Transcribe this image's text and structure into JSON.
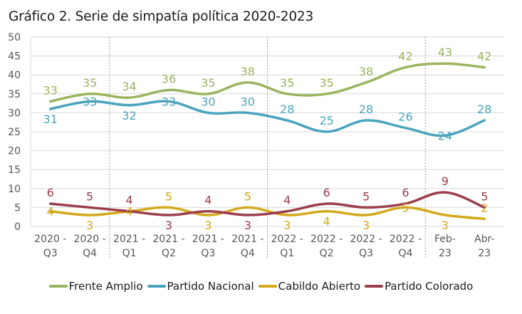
{
  "chart_data": {
    "type": "line",
    "title": "Gráfico 2. Serie de simpatía política 2020-2023",
    "xlabel": "",
    "ylabel": "",
    "ylim": [
      0,
      50
    ],
    "yticks": [
      0,
      5,
      10,
      15,
      20,
      25,
      30,
      35,
      40,
      45,
      50
    ],
    "grid": true,
    "legend_position": "bottom",
    "categories": [
      [
        "2020 -",
        "Q3"
      ],
      [
        "2020 -",
        "Q4"
      ],
      [
        "2021 -",
        "Q1"
      ],
      [
        "2021 -",
        "Q2"
      ],
      [
        "2021 -",
        "Q3"
      ],
      [
        "2021 -",
        "Q4"
      ],
      [
        "2022 -",
        "Q1"
      ],
      [
        "2022 -",
        "Q2"
      ],
      [
        "2022 -",
        "Q3"
      ],
      [
        "2022 -",
        "Q4"
      ],
      [
        "Feb-",
        "23"
      ],
      [
        "Abr-",
        "23"
      ]
    ],
    "year_separators_after_index": [
      1,
      5,
      9
    ],
    "series": [
      {
        "name": "Frente Amplio",
        "color": "#9bb35f",
        "values": [
          33,
          35,
          34,
          36,
          35,
          38,
          35,
          35,
          38,
          42,
          43,
          42
        ],
        "label_pos": [
          "above",
          "above",
          "above",
          "above",
          "above",
          "above",
          "above",
          "above",
          "above",
          "above",
          "above",
          "above"
        ]
      },
      {
        "name": "Partido Nacional",
        "color": "#4ba3bd",
        "values": [
          31,
          33,
          32,
          33,
          30,
          30,
          28,
          25,
          28,
          26,
          24,
          28
        ],
        "label_pos": [
          "below",
          "on",
          "below",
          "on",
          "above",
          "above",
          "above",
          "above",
          "above",
          "above",
          "on",
          "above"
        ]
      },
      {
        "name": "Cabildo Abierto",
        "color": "#d3a91c",
        "values": [
          4,
          3,
          4,
          5,
          3,
          5,
          3,
          4,
          3,
          5,
          3,
          2
        ],
        "label_pos": [
          "on",
          "below",
          "on",
          "above",
          "below",
          "above",
          "below",
          "below",
          "below",
          "on",
          "below",
          "above"
        ]
      },
      {
        "name": "Partido Colorado",
        "color": "#9c3e4b",
        "values": [
          6,
          5,
          4,
          3,
          4,
          3,
          4,
          6,
          5,
          6,
          9,
          5
        ],
        "label_pos": [
          "above",
          "above",
          "above",
          "below",
          "above",
          "below",
          "above",
          "above",
          "above",
          "above",
          "above",
          "above"
        ]
      }
    ]
  }
}
